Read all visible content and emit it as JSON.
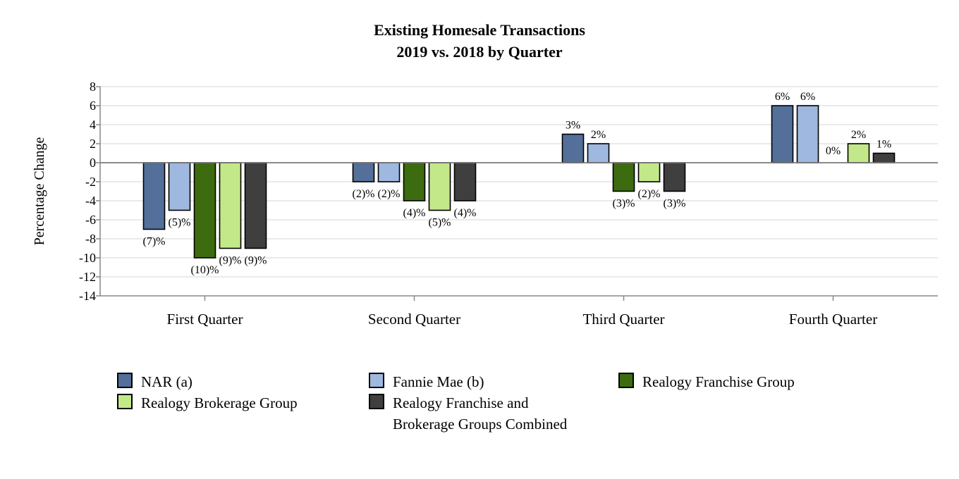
{
  "chart_data": {
    "type": "bar",
    "title": "Existing Homesale Transactions",
    "subtitle": "2019 vs. 2018 by Quarter",
    "xlabel": "",
    "ylabel": "Percentage Change",
    "ylim": [
      -14,
      8
    ],
    "yticks": [
      "8",
      "6",
      "4",
      "2",
      "0",
      "-2",
      "-4",
      "-6",
      "-8",
      "-10",
      "-12",
      "-14"
    ],
    "categories": [
      "First Quarter",
      "Second Quarter",
      "Third Quarter",
      "Fourth Quarter"
    ],
    "grid": true,
    "legend_position": "bottom",
    "series": [
      {
        "name": "NAR (a)",
        "color": "#536f9a",
        "values": [
          -7,
          -2,
          3,
          6
        ],
        "labels": [
          "(7)%",
          "(2)%",
          "3%",
          "6%"
        ]
      },
      {
        "name": "Fannie Mae (b)",
        "color": "#9fb8e0",
        "values": [
          -5,
          -2,
          2,
          6
        ],
        "labels": [
          "(5)%",
          "(2)%",
          "2%",
          "6%"
        ]
      },
      {
        "name": "Realogy Franchise Group",
        "color": "#3d6b0f",
        "values": [
          -10,
          -4,
          -3,
          0
        ],
        "labels": [
          "(10)%",
          "(4)%",
          "(3)%",
          "0%"
        ]
      },
      {
        "name": "Realogy Brokerage Group",
        "color": "#c3e88a",
        "values": [
          -9,
          -5,
          -2,
          2
        ],
        "labels": [
          "(9)%",
          "(5)%",
          "(2)%",
          "2%"
        ]
      },
      {
        "name": "Realogy Franchise and Brokerage Groups Combined",
        "color": "#3f3f3f",
        "values": [
          -9,
          -4,
          -3,
          1
        ],
        "labels": [
          "(9)%",
          "(4)%",
          "(3)%",
          "1%"
        ]
      }
    ]
  },
  "legend": {
    "items": [
      {
        "label": "NAR (a)",
        "color": "#536f9a"
      },
      {
        "label": "Fannie Mae (b)",
        "color": "#9fb8e0"
      },
      {
        "label": "Realogy Franchise Group",
        "color": "#3d6b0f"
      },
      {
        "label": "Realogy Brokerage Group",
        "color": "#c3e88a"
      },
      {
        "label_line1": "Realogy Franchise and",
        "label_line2": "Brokerage Groups Combined",
        "color": "#3f3f3f"
      }
    ]
  }
}
